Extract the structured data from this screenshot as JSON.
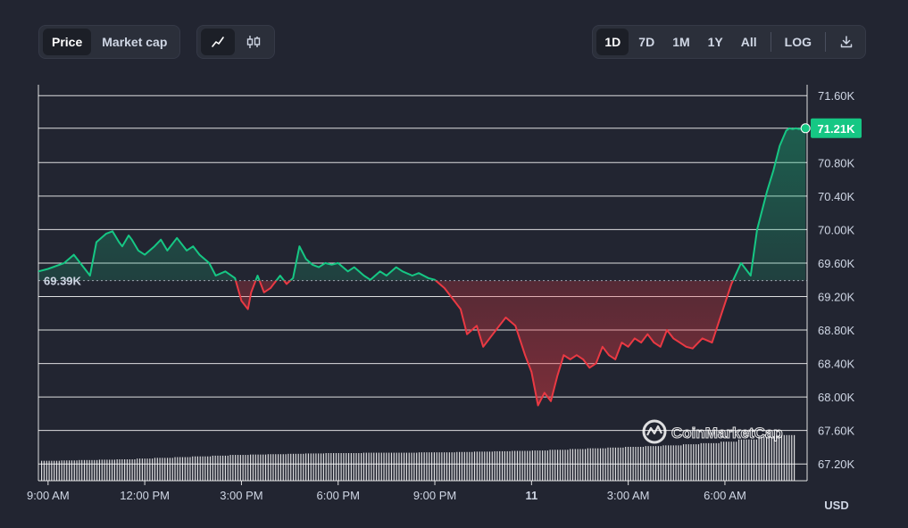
{
  "toolbar": {
    "metric_tabs": [
      "Price",
      "Market cap"
    ],
    "chart_type_icons": [
      "line-chart-icon",
      "candlestick-icon"
    ],
    "ranges": [
      "1D",
      "7D",
      "1M",
      "1Y",
      "All"
    ],
    "log_label": "LOG",
    "download_icon": "download-icon"
  },
  "colors": {
    "up": "#16c784",
    "down": "#ea3943",
    "background": "#222531",
    "price_badge": "#16c784"
  },
  "chart_data": {
    "type": "area",
    "currency_label": "USD",
    "watermark": "CoinMarketCap",
    "current_price_label": "71.21K",
    "open_price_label": "69.39K",
    "open_price": 69.39,
    "ylim": [
      67.0,
      71.73
    ],
    "y_ticks": [
      "71.60K",
      "71.21K",
      "70.80K",
      "70.40K",
      "70.00K",
      "69.60K",
      "69.20K",
      "68.80K",
      "68.40K",
      "68.00K",
      "67.60K",
      "67.20K"
    ],
    "y_tick_values": [
      71.6,
      71.21,
      70.8,
      70.4,
      70.0,
      69.6,
      69.2,
      68.8,
      68.4,
      68.0,
      67.6,
      67.2
    ],
    "x_labels": [
      "9:00 AM",
      "12:00 PM",
      "3:00 PM",
      "6:00 PM",
      "9:00 PM",
      "11",
      "3:00 AM",
      "6:00 AM"
    ],
    "x_label_hours": [
      0,
      3,
      6,
      9,
      12,
      15,
      18,
      21
    ],
    "x_range_hours": [
      -0.3,
      23.55
    ],
    "series": [
      {
        "x": [
          -0.3,
          0.0,
          0.5,
          0.8,
          1.0,
          1.3,
          1.5,
          1.8,
          2.0,
          2.2,
          2.3,
          2.5,
          2.6,
          2.8,
          3.0,
          3.3,
          3.5,
          3.7,
          4.0,
          4.3,
          4.5,
          4.7,
          5.0,
          5.2,
          5.5,
          5.8,
          6.0,
          6.2,
          6.3,
          6.5,
          6.7,
          6.9,
          7.0,
          7.2,
          7.4,
          7.6,
          7.8,
          8.0,
          8.2,
          8.4,
          8.6,
          8.8,
          9.0,
          9.3,
          9.5,
          9.8,
          10.0,
          10.3,
          10.5,
          10.8,
          11.0,
          11.3,
          11.5,
          11.8,
          12.0,
          12.3,
          12.5,
          12.8,
          13.0,
          13.3,
          13.5,
          13.8,
          14.0,
          14.2,
          14.5,
          14.8,
          15.0,
          15.2,
          15.4,
          15.6,
          15.8,
          16.0,
          16.2,
          16.4,
          16.6,
          16.8,
          17.0,
          17.2,
          17.4,
          17.6,
          17.8,
          18.0,
          18.2,
          18.4,
          18.6,
          18.8,
          19.0,
          19.2,
          19.4,
          19.6,
          19.8,
          20.0,
          20.3,
          20.6,
          20.9,
          21.2,
          21.5,
          21.8,
          22.0,
          22.3,
          22.5,
          22.7,
          22.9,
          23.0,
          23.1,
          23.2,
          23.3,
          23.4,
          23.5
        ],
        "y": [
          69.5,
          69.53,
          69.6,
          69.7,
          69.6,
          69.45,
          69.85,
          69.95,
          69.98,
          69.85,
          69.8,
          69.93,
          69.88,
          69.75,
          69.7,
          69.8,
          69.88,
          69.75,
          69.9,
          69.75,
          69.8,
          69.7,
          69.6,
          69.45,
          69.5,
          69.42,
          69.15,
          69.05,
          69.25,
          69.45,
          69.25,
          69.3,
          69.35,
          69.45,
          69.35,
          69.42,
          69.8,
          69.65,
          69.58,
          69.55,
          69.6,
          69.58,
          69.6,
          69.5,
          69.55,
          69.45,
          69.4,
          69.5,
          69.45,
          69.55,
          69.5,
          69.45,
          69.48,
          69.42,
          69.4,
          69.3,
          69.2,
          69.05,
          68.75,
          68.85,
          68.6,
          68.75,
          68.85,
          68.95,
          68.85,
          68.5,
          68.3,
          67.9,
          68.05,
          67.95,
          68.25,
          68.5,
          68.45,
          68.5,
          68.45,
          68.35,
          68.4,
          68.6,
          68.5,
          68.45,
          68.65,
          68.6,
          68.7,
          68.65,
          68.75,
          68.65,
          68.6,
          68.8,
          68.7,
          68.65,
          68.6,
          68.58,
          68.7,
          68.65,
          69.0,
          69.35,
          69.6,
          69.45,
          70.0,
          70.45,
          70.7,
          71.0,
          71.18,
          71.21,
          71.2,
          71.21,
          71.2,
          71.21,
          71.21
        ]
      }
    ],
    "volume": {
      "note": "relative bar heights of volume histogram",
      "values": [
        0.3,
        0.31,
        0.32,
        0.33,
        0.34,
        0.36,
        0.38,
        0.4,
        0.42,
        0.44,
        0.46,
        0.47,
        0.48,
        0.49,
        0.5,
        0.51,
        0.51,
        0.52,
        0.52,
        0.52,
        0.53,
        0.53,
        0.54,
        0.55,
        0.56,
        0.57,
        0.58,
        0.6,
        0.62,
        0.64,
        0.66,
        0.68,
        0.7,
        0.72,
        0.75,
        0.78,
        0.82,
        0.88,
        0.95,
        1.0
      ]
    }
  }
}
